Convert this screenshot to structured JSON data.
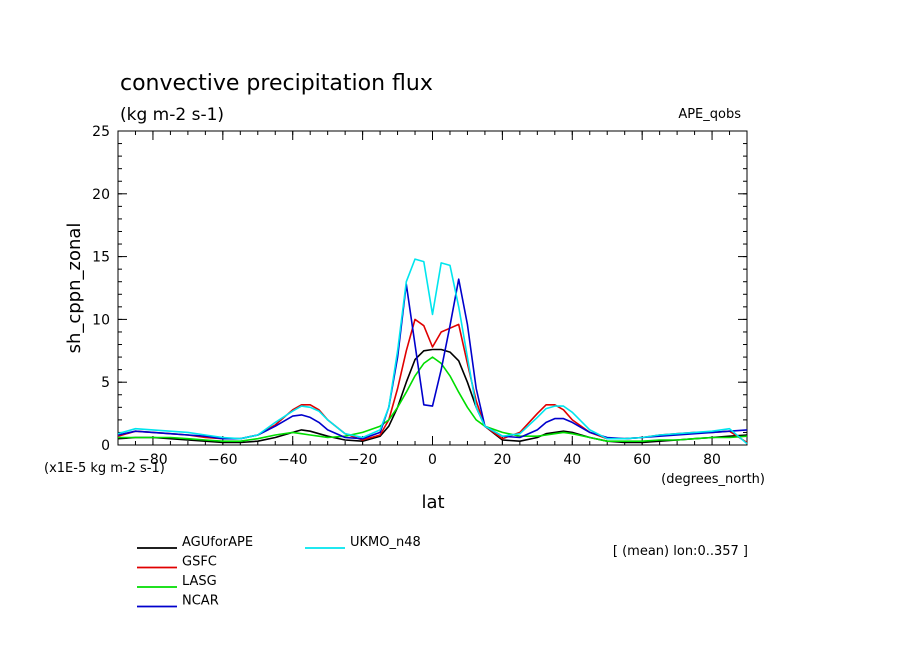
{
  "chart_data": {
    "type": "line",
    "title": "convective precipitation flux",
    "units": "(kg m-2 s-1)",
    "dataset": "APE_qobs",
    "ylabel": "sh_cppn_zonal",
    "yscale_note": "(x1E-5 kg m-2 s-1)",
    "xlabel": "lat",
    "xunits": "(degrees_north)",
    "annotation": "[ (mean) lon:0..357 ]",
    "xlim": [
      -90,
      90
    ],
    "ylim": [
      0,
      25
    ],
    "xticks": [
      -80,
      -60,
      -40,
      -20,
      0,
      20,
      40,
      60,
      80
    ],
    "yticks": [
      0,
      5,
      10,
      15,
      20,
      25
    ],
    "x": [
      -90,
      -85,
      -80,
      -75,
      -70,
      -65,
      -60,
      -55,
      -50,
      -45,
      -40,
      -37.5,
      -35,
      -32.5,
      -30,
      -25,
      -20,
      -15,
      -12.5,
      -10,
      -7.5,
      -5,
      -2.5,
      0,
      2.5,
      5,
      7.5,
      10,
      12.5,
      15,
      20,
      25,
      30,
      32.5,
      35,
      37.5,
      40,
      45,
      50,
      55,
      60,
      65,
      70,
      75,
      80,
      85,
      90
    ],
    "series": [
      {
        "name": "AGUforAPE",
        "color": "#000000",
        "values": [
          0.5,
          0.6,
          0.6,
          0.5,
          0.4,
          0.3,
          0.2,
          0.2,
          0.3,
          0.6,
          1.0,
          1.2,
          1.1,
          0.9,
          0.7,
          0.4,
          0.3,
          0.7,
          1.5,
          3.0,
          5.0,
          6.8,
          7.5,
          7.6,
          7.6,
          7.4,
          6.7,
          5.0,
          3.0,
          1.5,
          0.4,
          0.3,
          0.6,
          0.9,
          1.0,
          1.1,
          1.0,
          0.6,
          0.3,
          0.2,
          0.2,
          0.3,
          0.4,
          0.5,
          0.6,
          0.7,
          0.8
        ]
      },
      {
        "name": "GSFC",
        "color": "#e00000",
        "values": [
          0.7,
          1.1,
          1.0,
          0.9,
          0.8,
          0.6,
          0.5,
          0.5,
          0.8,
          1.6,
          2.8,
          3.2,
          3.2,
          2.8,
          2.0,
          0.9,
          0.4,
          0.8,
          2.0,
          4.5,
          7.5,
          10.0,
          9.5,
          7.8,
          9.0,
          9.3,
          9.6,
          6.5,
          3.5,
          1.5,
          0.5,
          1.0,
          2.5,
          3.2,
          3.2,
          2.8,
          2.0,
          1.0,
          0.5,
          0.5,
          0.6,
          0.8,
          0.9,
          1.0,
          1.0,
          1.1,
          0.2
        ]
      },
      {
        "name": "LASG",
        "color": "#00dd00",
        "values": [
          0.6,
          0.6,
          0.6,
          0.6,
          0.5,
          0.4,
          0.3,
          0.3,
          0.5,
          0.8,
          1.0,
          0.9,
          0.8,
          0.7,
          0.6,
          0.7,
          1.0,
          1.5,
          2.0,
          3.0,
          4.2,
          5.5,
          6.5,
          7.0,
          6.5,
          5.5,
          4.2,
          3.0,
          2.0,
          1.5,
          1.0,
          0.7,
          0.7,
          0.8,
          0.9,
          1.0,
          0.9,
          0.6,
          0.3,
          0.3,
          0.3,
          0.4,
          0.4,
          0.5,
          0.6,
          0.6,
          0.7
        ]
      },
      {
        "name": "NCAR",
        "color": "#0000cc",
        "values": [
          0.8,
          1.1,
          1.0,
          0.9,
          0.8,
          0.7,
          0.5,
          0.5,
          0.8,
          1.5,
          2.3,
          2.4,
          2.2,
          1.8,
          1.2,
          0.6,
          0.5,
          1.0,
          3.0,
          7.0,
          12.8,
          8.0,
          3.2,
          3.1,
          6.0,
          9.5,
          13.2,
          9.6,
          4.5,
          1.5,
          0.7,
          0.6,
          1.2,
          1.8,
          2.1,
          2.1,
          1.8,
          1.0,
          0.6,
          0.5,
          0.6,
          0.7,
          0.8,
          0.9,
          1.0,
          1.1,
          1.2
        ]
      },
      {
        "name": "UKMO_n48",
        "color": "#00e5ee",
        "values": [
          0.9,
          1.3,
          1.2,
          1.1,
          1.0,
          0.8,
          0.6,
          0.5,
          0.8,
          1.8,
          2.7,
          3.1,
          3.0,
          2.7,
          2.0,
          0.9,
          0.6,
          1.2,
          3.0,
          7.5,
          13.0,
          14.8,
          14.6,
          10.4,
          14.5,
          14.3,
          11.0,
          7.0,
          3.0,
          1.5,
          0.7,
          0.9,
          2.2,
          2.9,
          3.1,
          3.1,
          2.6,
          1.2,
          0.5,
          0.5,
          0.6,
          0.8,
          0.9,
          1.0,
          1.1,
          1.3,
          0.1
        ]
      }
    ],
    "legend_columns": [
      [
        "AGUforAPE",
        "GSFC",
        "LASG",
        "NCAR"
      ],
      [
        "UKMO_n48"
      ]
    ]
  }
}
